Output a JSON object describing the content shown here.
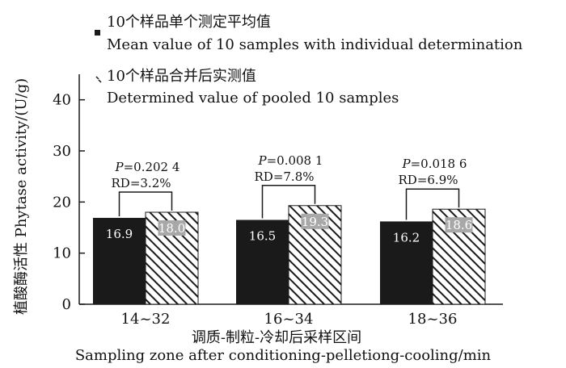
{
  "chart_data": {
    "type": "bar",
    "categories": [
      "14~32",
      "16~34",
      "18~36"
    ],
    "series": [
      {
        "name_cn": "10个样品单个测定平均值",
        "name": "Mean value of 10 samples with individual determination",
        "values": [
          16.9,
          16.5,
          16.2
        ],
        "color": "#1a1a1a",
        "pattern": "solid"
      },
      {
        "name_cn": "10个样品合并后实测值",
        "name": "Determined value of pooled 10 samples",
        "values": [
          18.0,
          19.3,
          18.6
        ],
        "color": "#1a1a1a",
        "pattern": "diagonal-hatch"
      }
    ],
    "value_labels": [
      [
        "16.9",
        "18.0"
      ],
      [
        "16.5",
        "19.3"
      ],
      [
        "16.2",
        "18.6"
      ]
    ],
    "annotations": [
      {
        "p": "=0.202 4",
        "rd": "RD=3.2%"
      },
      {
        "p": "=0.008 1",
        "rd": "RD=7.8%"
      },
      {
        "p": "=0.018 6",
        "rd": "RD=6.9%"
      }
    ],
    "p_symbol": "P",
    "ylim": [
      0,
      45
    ],
    "yticks": [
      0,
      10,
      20,
      30,
      40
    ],
    "ylabel": "植酸酶活性  Phytase activity/(U/g)",
    "xlabel_cn": "调质-制粒-冷却后采样区间",
    "xlabel": "Sampling zone after conditioning-pelletiong-cooling/min",
    "legend_position": "top",
    "grid": false
  }
}
